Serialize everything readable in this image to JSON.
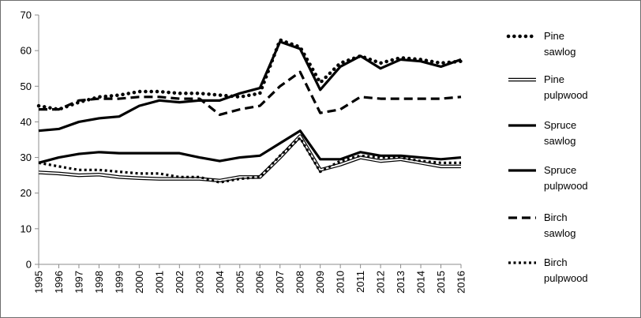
{
  "chart_data": {
    "type": "line",
    "title": "",
    "xlabel": "",
    "ylabel": "",
    "ylim": [
      0,
      70
    ],
    "yticks": [
      0,
      10,
      20,
      30,
      40,
      50,
      60,
      70
    ],
    "grid": false,
    "legend_position": "right",
    "x": [
      "1995",
      "1996",
      "1997",
      "1998",
      "1999",
      "2000",
      "2001",
      "2002",
      "2003",
      "2004",
      "2005",
      "2006",
      "2007",
      "2008",
      "2009",
      "2010",
      "2011",
      "2012",
      "2013",
      "2014",
      "2015",
      "2016"
    ],
    "series": [
      {
        "name": "Pine sawlog",
        "style": "dotted-thick",
        "color": "#000000",
        "values": [
          44.5,
          43.5,
          45.5,
          47.0,
          47.5,
          48.5,
          48.5,
          48.0,
          48.0,
          47.5,
          47.0,
          48.0,
          63.0,
          61.0,
          51.0,
          56.5,
          58.5,
          56.5,
          58.0,
          57.5,
          56.5,
          57.0
        ]
      },
      {
        "name": "Pine pulpwood",
        "style": "double",
        "color": "#000000",
        "values": [
          25.8,
          25.5,
          25.0,
          25.2,
          24.5,
          24.2,
          24.0,
          24.0,
          24.0,
          23.5,
          24.5,
          24.5,
          30.0,
          36.0,
          26.5,
          28.0,
          30.0,
          29.0,
          29.5,
          28.5,
          27.5,
          27.5
        ]
      },
      {
        "name": "Spruce sawlog",
        "style": "solid",
        "color": "#000000",
        "values": [
          37.5,
          38.0,
          40.0,
          41.0,
          41.5,
          44.5,
          46.0,
          45.5,
          46.0,
          46.0,
          48.0,
          49.5,
          62.5,
          60.5,
          49.0,
          55.5,
          58.5,
          55.0,
          57.5,
          57.0,
          55.5,
          57.5
        ]
      },
      {
        "name": "Spruce pulpwood",
        "style": "solid",
        "color": "#000000",
        "values": [
          28.5,
          30.0,
          31.0,
          31.5,
          31.2,
          31.2,
          31.2,
          31.2,
          30.0,
          29.0,
          30.0,
          30.5,
          34.0,
          37.5,
          29.5,
          29.5,
          31.5,
          30.5,
          30.5,
          30.0,
          29.5,
          30.0
        ]
      },
      {
        "name": "Birch sawlog",
        "style": "dashed",
        "color": "#000000",
        "values": [
          43.5,
          43.5,
          46.0,
          46.5,
          46.5,
          47.0,
          47.0,
          46.5,
          46.5,
          42.0,
          43.5,
          44.5,
          50.0,
          54.0,
          42.5,
          43.5,
          47.0,
          46.5,
          46.5,
          46.5,
          46.5,
          47.0
        ]
      },
      {
        "name": "Birch pulpwood",
        "style": "dotted",
        "color": "#000000",
        "values": [
          28.5,
          27.5,
          26.5,
          26.5,
          26.0,
          25.5,
          25.5,
          24.5,
          24.5,
          23.0,
          24.0,
          24.5,
          30.5,
          35.5,
          26.0,
          29.0,
          30.5,
          30.0,
          30.0,
          29.0,
          28.5,
          28.5
        ]
      }
    ],
    "legend": [
      {
        "line1": "Pine",
        "line2": "sawlog"
      },
      {
        "line1": "Pine",
        "line2": "pulpwood"
      },
      {
        "line1": "Spruce",
        "line2": "sawlog"
      },
      {
        "line1": "Spruce",
        "line2": "pulpwood"
      },
      {
        "line1": "Birch",
        "line2": "sawlog"
      },
      {
        "line1": "Birch",
        "line2": "pulpwood"
      }
    ]
  }
}
